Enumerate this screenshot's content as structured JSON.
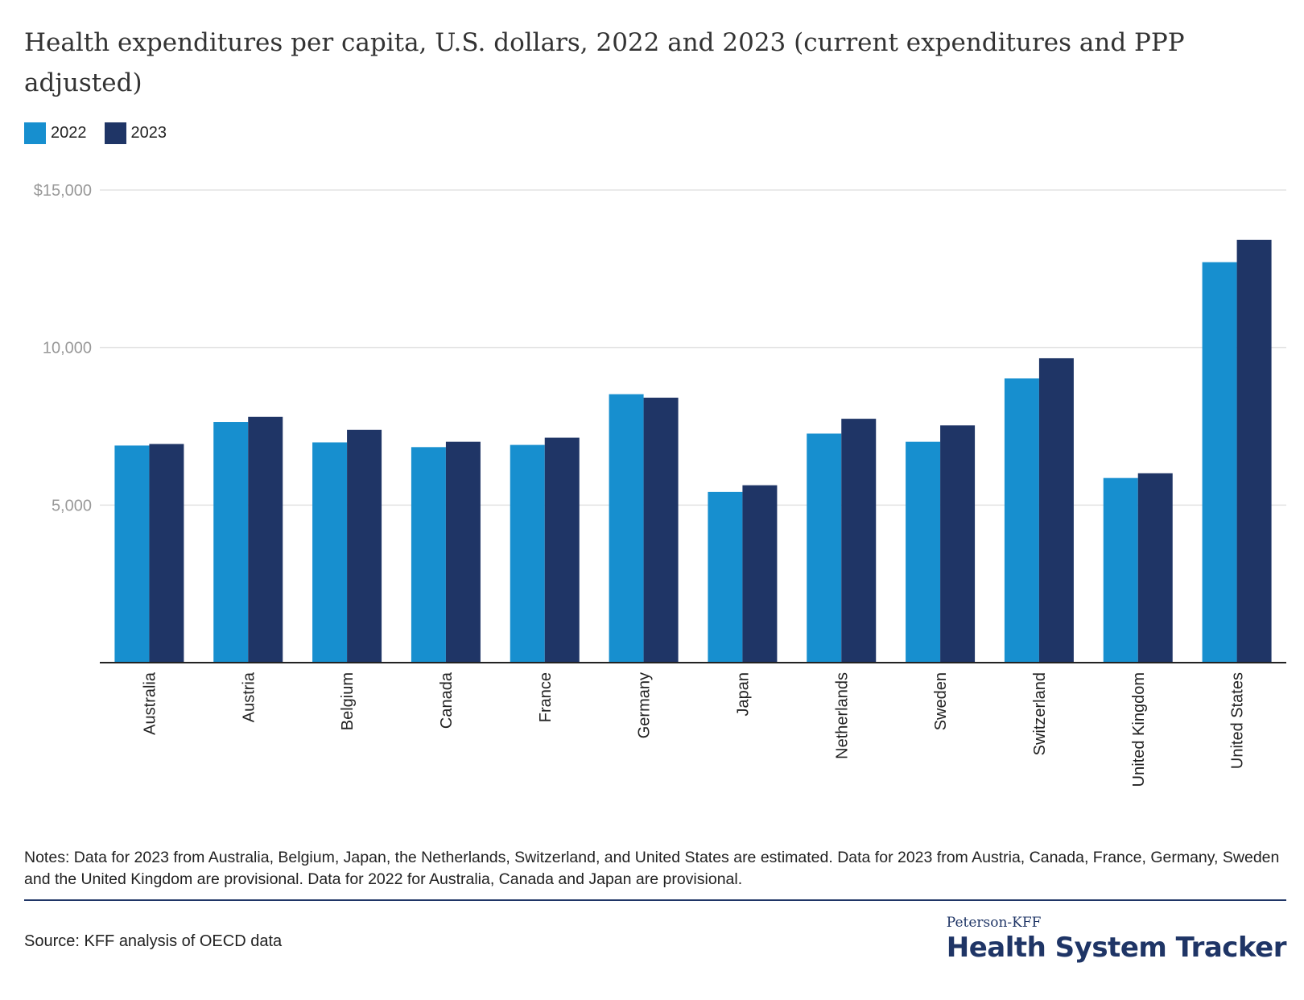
{
  "title": "Health expenditures per capita, U.S. dollars, 2022 and 2023 (current expenditures and PPP adjusted)",
  "notes": "Notes: Data for 2023 from Australia, Belgium, Japan, the Netherlands, Switzerland, and United States are estimated. Data for 2023 from Austria, Canada, France, Germany, Sweden and the United Kingdom are provisional. Data for 2022 for Australia, Canada and Japan are provisional.",
  "source": "Source: KFF analysis of OECD data",
  "brand": {
    "top": "Peterson-KFF",
    "main": "Health System Tracker"
  },
  "colors": {
    "series_2022": "#178fcf",
    "series_2023": "#1f3566",
    "grid": "#e3e3e3",
    "axis": "#222222"
  },
  "chart_data": {
    "type": "bar",
    "title": "Health expenditures per capita, U.S. dollars, 2022 and 2023 (current expenditures and PPP adjusted)",
    "categories": [
      "Australia",
      "Austria",
      "Belgium",
      "Canada",
      "France",
      "Germany",
      "Japan",
      "Netherlands",
      "Sweden",
      "Switzerland",
      "United Kingdom",
      "United States"
    ],
    "series": [
      {
        "name": "2022",
        "values": [
          6890,
          7640,
          6990,
          6840,
          6910,
          8520,
          5420,
          7270,
          7010,
          9020,
          5860,
          12710
        ]
      },
      {
        "name": "2023",
        "values": [
          6940,
          7800,
          7390,
          7010,
          7140,
          8410,
          5630,
          7740,
          7530,
          9660,
          6010,
          13420
        ]
      }
    ],
    "ylim": [
      0,
      15000
    ],
    "yticks": [
      5000,
      10000,
      15000
    ],
    "ytick_labels": [
      "5,000",
      "10,000",
      "$15,000"
    ],
    "grid": true,
    "legend": "top-left"
  }
}
